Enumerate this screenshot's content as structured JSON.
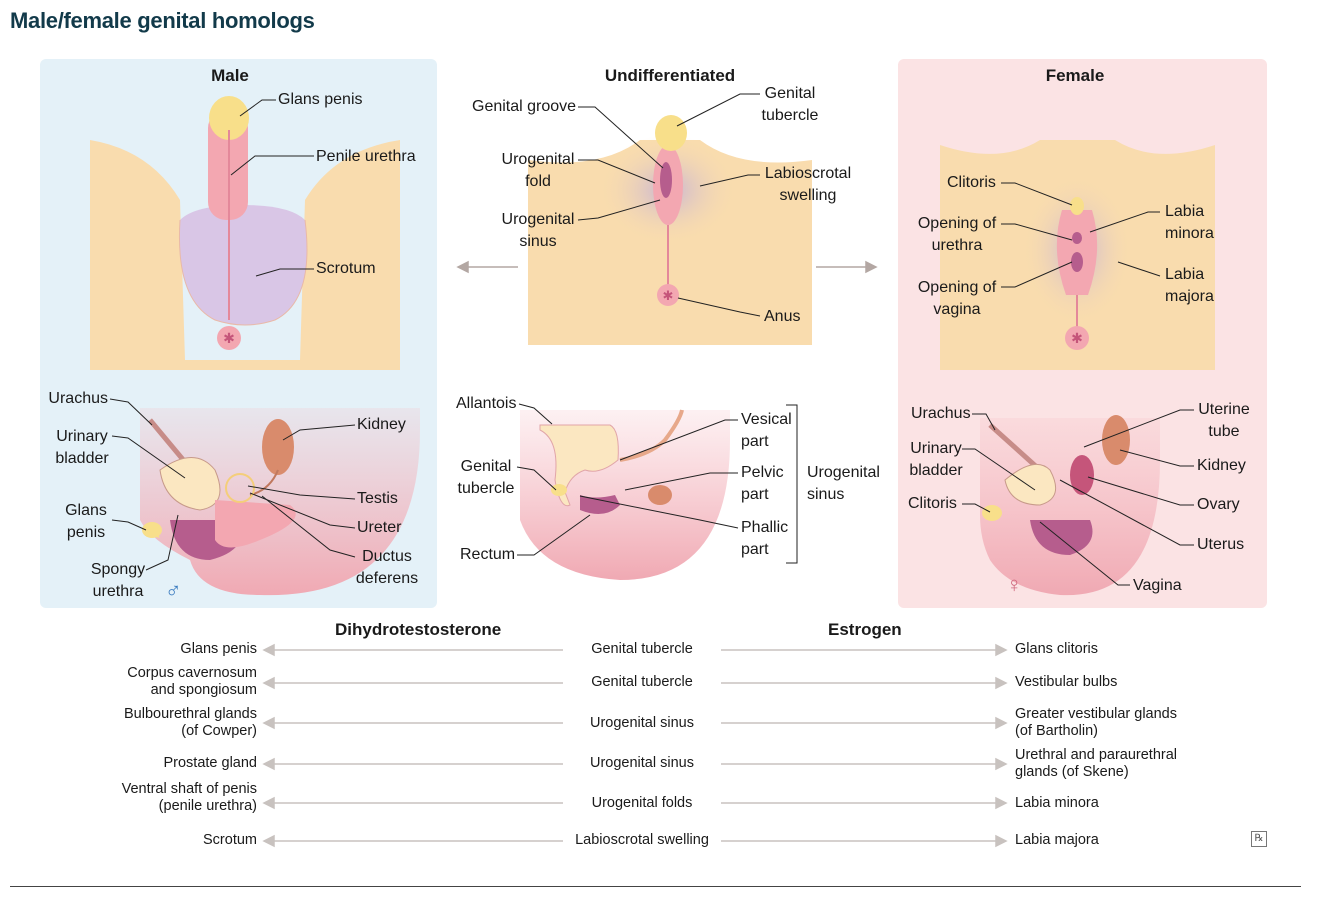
{
  "title": "Male/female genital homologs",
  "panels": {
    "male": "Male",
    "undiff": "Undifferentiated",
    "female": "Female"
  },
  "male_labels": {
    "glans_penis": "Glans penis",
    "penile_urethra": "Penile urethra",
    "scrotum": "Scrotum",
    "urachus": "Urachus",
    "kidney": "Kidney",
    "urinary_bladder": "Urinary\nbladder",
    "testis": "Testis",
    "glans_penis_2": "Glans\npenis",
    "ureter": "Ureter",
    "ductus_deferens": "Ductus\ndeferens",
    "spongy_urethra": "Spongy\nurethra",
    "symbol": "♂"
  },
  "undiff_labels": {
    "genital_groove": "Genital groove",
    "genital_tubercle": "Genital\ntubercle",
    "urogenital_fold": "Urogenital\nfold",
    "labioscrotal_swelling": "Labioscrotal\nswelling",
    "urogenital_sinus": "Urogenital\nsinus",
    "anus": "Anus",
    "allantois": "Allantois",
    "vesical_part": "Vesical\npart",
    "genital_tubercle_2": "Genital\ntubercle",
    "pelvic_part": "Pelvic\npart",
    "urogenital_sinus_2": "Urogenital\nsinus",
    "phallic_part": "Phallic\npart",
    "rectum": "Rectum"
  },
  "female_labels": {
    "clitoris": "Clitoris",
    "labia_minora": "Labia\nminora",
    "opening_urethra": "Opening of\nurethra",
    "labia_majora": "Labia\nmajora",
    "opening_vagina": "Opening of\nvagina",
    "urachus": "Urachus",
    "uterine_tube": "Uterine\ntube",
    "urinary_bladder": "Urinary\nbladder",
    "kidney": "Kidney",
    "clitoris_2": "Clitoris",
    "ovary": "Ovary",
    "uterus": "Uterus",
    "vagina": "Vagina",
    "symbol": "♀"
  },
  "table": {
    "header_left": "Dihydrotestosterone",
    "header_right": "Estrogen",
    "rows": [
      {
        "male": "Glans penis",
        "origin": "Genital tubercle",
        "female": "Glans clitoris"
      },
      {
        "male": "Corpus cavernosum\nand spongiosum",
        "origin": "Genital tubercle",
        "female": "Vestibular bulbs"
      },
      {
        "male": "Bulbourethral glands\n(of Cowper)",
        "origin": "Urogenital sinus",
        "female": "Greater vestibular glands\n(of Bartholin)"
      },
      {
        "male": "Prostate gland",
        "origin": "Urogenital sinus",
        "female": "Urethral and paraurethral\nglands (of Skene)"
      },
      {
        "male": "Ventral shaft of penis\n(penile urethra)",
        "origin": "Urogenital folds",
        "female": "Labia minora"
      },
      {
        "male": "Scrotum",
        "origin": "Labioscrotal swelling",
        "female": "Labia majora"
      }
    ]
  },
  "rx_mark": "℞",
  "colors": {
    "title": "#123a4a",
    "male_panel": "#e4f1f8",
    "female_panel": "#fbe3e4",
    "skin": "#f9dcae",
    "pink": "#f0a9b3",
    "glans": "#f8df8a"
  }
}
